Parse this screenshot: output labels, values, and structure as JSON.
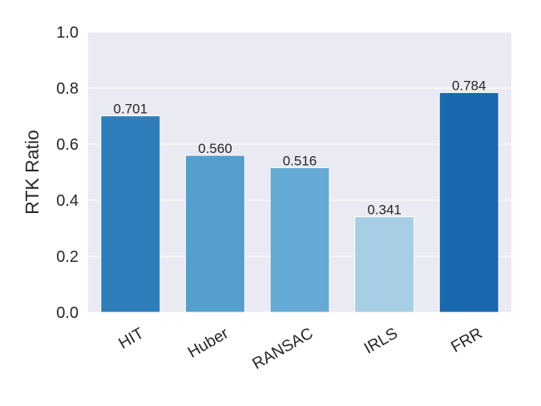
{
  "chart_data": {
    "type": "bar",
    "categories": [
      "HIT",
      "Huber",
      "RANSAC",
      "IRLS",
      "FRR"
    ],
    "values": [
      0.701,
      0.56,
      0.516,
      0.341,
      0.784
    ],
    "data_labels": [
      "0.701",
      "0.560",
      "0.516",
      "0.341",
      "0.784"
    ],
    "bar_colors": [
      "#2e7ebc",
      "#549fcd",
      "#65aad4",
      "#a6cee4",
      "#1a68ae"
    ],
    "ylabel": "RTK Ratio",
    "ylim": [
      0,
      1.0
    ],
    "yticks": [
      0.0,
      0.2,
      0.4,
      0.6,
      0.8,
      1.0
    ],
    "ytick_labels": [
      "0.0",
      "0.2",
      "0.4",
      "0.6",
      "0.8",
      "1.0"
    ],
    "grid": true,
    "background": "#eaeaf2"
  }
}
